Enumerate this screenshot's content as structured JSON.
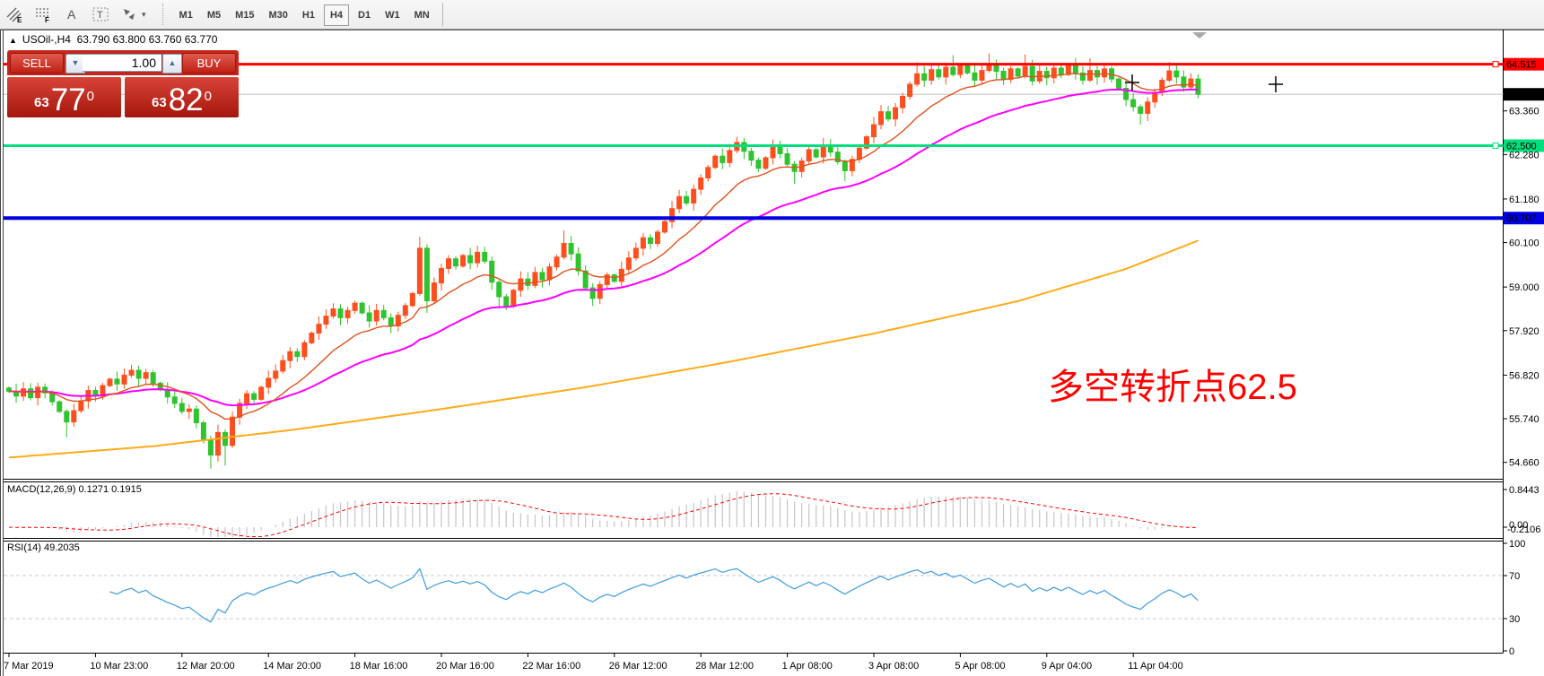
{
  "toolbar": {
    "tool_glyphs": {
      "channel": "E",
      "fibonacci": "F",
      "text": "A",
      "label": "T",
      "caret": "▾"
    },
    "timeframes": [
      {
        "label": "M1",
        "active": false
      },
      {
        "label": "M5",
        "active": false
      },
      {
        "label": "M15",
        "active": false
      },
      {
        "label": "M30",
        "active": false
      },
      {
        "label": "H1",
        "active": false
      },
      {
        "label": "H4",
        "active": true
      },
      {
        "label": "D1",
        "active": false
      },
      {
        "label": "W1",
        "active": false
      },
      {
        "label": "MN",
        "active": false
      }
    ]
  },
  "chart_header": {
    "collapse_icon": "▲",
    "symbol_period": "USOil-,H4",
    "ohlc": "63.790 63.800 63.760 63.770"
  },
  "trade_panel": {
    "sell_label": "SELL",
    "buy_label": "BUY",
    "volume": "1.00",
    "spin_up": "▲",
    "spin_down": "▼",
    "sell_price": {
      "small": "63",
      "big": "77",
      "sup": "0"
    },
    "buy_price": {
      "small": "63",
      "big": "82",
      "sup": "0"
    }
  },
  "annotation": {
    "text": "多空转折点62.5",
    "color": "#ff0000"
  },
  "indicators": {
    "macd_label": "MACD(12,26,9) 0.1271 0.1915",
    "rsi_label": "RSI(14) 49.2035"
  },
  "axis": {
    "price_ticks": [
      "63.360",
      "62.280",
      "61.180",
      "60.100",
      "59.000",
      "57.920",
      "56.820",
      "55.740",
      "54.660"
    ],
    "macd_ticks": {
      "top": "0.8443",
      "zero": "0.00",
      "bottom": "-0.2106"
    },
    "rsi_ticks": [
      "100",
      "70",
      "30",
      "0"
    ],
    "time_labels": [
      "7 Mar 2019",
      "10 Mar 23:00",
      "12 Mar 20:00",
      "14 Mar 20:00",
      "18 Mar 16:00",
      "20 Mar 16:00",
      "22 Mar 16:00",
      "26 Mar 12:00",
      "28 Mar 12:00",
      "1 Apr 08:00",
      "3 Apr 08:00",
      "5 Apr 08:00",
      "9 Apr 04:00",
      "11 Apr 04:00"
    ]
  },
  "colors": {
    "candle_up": "#fd4f1e",
    "candle_down": "#2fc32e",
    "ma_fast": "#e0521c",
    "ma_mid": "#ff00ff",
    "ma_slow": "#ffab18",
    "line_red": "#ff0000",
    "line_green": "#00df7d",
    "line_blue": "#0000e0",
    "current_line": "#c0c0c0",
    "current_badge": "#000000",
    "macd_bar": "#c9c9c9",
    "macd_signal": "#ff0000",
    "rsi_line": "#3f9ce0",
    "annotation": "#ff0000",
    "panel_red": "#c3261b"
  },
  "chart_data": {
    "type": "candlestick",
    "symbol": "USOil-",
    "period": "H4",
    "first_open": 56.5,
    "closes": [
      56.42,
      56.3,
      56.48,
      56.26,
      56.52,
      56.38,
      56.16,
      55.92,
      55.66,
      55.94,
      56.18,
      56.44,
      56.3,
      56.56,
      56.72,
      56.6,
      56.82,
      56.94,
      56.74,
      56.88,
      56.62,
      56.46,
      56.28,
      56.12,
      55.92,
      55.98,
      55.64,
      55.22,
      54.84,
      55.4,
      55.08,
      55.78,
      56.12,
      56.36,
      56.22,
      56.52,
      56.74,
      56.92,
      57.18,
      57.4,
      57.28,
      57.62,
      57.86,
      58.08,
      58.28,
      58.46,
      58.24,
      58.42,
      58.6,
      58.36,
      58.16,
      58.42,
      58.24,
      58.04,
      58.3,
      58.54,
      58.84,
      59.96,
      58.66,
      59.1,
      59.46,
      59.7,
      59.52,
      59.78,
      59.6,
      59.86,
      59.64,
      59.12,
      58.76,
      58.52,
      58.92,
      59.2,
      59.04,
      59.36,
      59.18,
      59.5,
      59.74,
      60.08,
      59.82,
      59.4,
      58.98,
      58.72,
      59.06,
      59.3,
      59.14,
      59.44,
      59.72,
      59.96,
      60.22,
      60.08,
      60.36,
      60.62,
      60.94,
      61.24,
      61.08,
      61.42,
      61.7,
      61.96,
      62.24,
      62.08,
      62.38,
      62.58,
      62.36,
      62.14,
      61.94,
      62.2,
      62.46,
      62.3,
      62.04,
      61.86,
      62.12,
      62.4,
      62.22,
      62.5,
      62.34,
      62.1,
      61.88,
      62.16,
      62.44,
      62.72,
      63.02,
      63.34,
      63.16,
      63.44,
      63.72,
      64.02,
      64.28,
      64.12,
      64.38,
      64.2,
      64.44,
      64.26,
      64.48,
      64.3,
      64.12,
      64.36,
      64.52,
      64.34,
      64.14,
      64.4,
      64.22,
      64.46,
      64.1,
      64.34,
      64.18,
      64.42,
      64.26,
      64.48,
      64.3,
      64.12,
      64.36,
      64.2,
      64.4,
      64.15,
      63.92,
      63.64,
      63.46,
      63.3,
      63.58,
      63.82,
      64.12,
      64.35,
      64.2,
      63.95,
      64.15,
      63.77
    ],
    "wick_overrides": {
      "8": [
        0.06,
        0.38
      ],
      "28": [
        0.1,
        0.34
      ],
      "30": [
        0.08,
        0.5
      ],
      "57": [
        0.28,
        0.06
      ],
      "58": [
        0.1,
        0.3
      ],
      "68": [
        0.06,
        0.3
      ],
      "77": [
        0.32,
        0.06
      ],
      "109": [
        0.08,
        0.3
      ],
      "116": [
        0.06,
        0.26
      ],
      "126": [
        0.28,
        0.06
      ],
      "131": [
        0.3,
        0.05
      ],
      "136": [
        0.26,
        0.05
      ],
      "141": [
        0.3,
        0.06
      ],
      "150": [
        0.3,
        0.05
      ],
      "157": [
        0.06,
        0.28
      ],
      "161": [
        0.22,
        0.05
      ],
      "165": [
        0.12,
        0.1
      ]
    },
    "hlines": [
      {
        "price": 64.515,
        "label": "64.515",
        "color": "#ff0000",
        "badge_bg": "#ff0000",
        "badge_fg": "#ffffff",
        "width": 3,
        "handle": true
      },
      {
        "price": 62.5,
        "label": "62.500",
        "color": "#00df7d",
        "badge_bg": "#00df7d",
        "badge_fg": "#000000",
        "width": 3,
        "handle": true
      },
      {
        "price": 60.707,
        "label": "60.707",
        "color": "#0000e0",
        "badge_bg": "#0000e0",
        "badge_fg": "#ffffff",
        "width": 4,
        "handle": false
      }
    ],
    "current_price": {
      "price": 63.77,
      "label": "63.770"
    },
    "slow_ma_anchors": [
      [
        0,
        54.78
      ],
      [
        20,
        55.06
      ],
      [
        40,
        55.48
      ],
      [
        60,
        55.98
      ],
      [
        80,
        56.52
      ],
      [
        100,
        57.15
      ],
      [
        120,
        57.85
      ],
      [
        140,
        58.65
      ],
      [
        155,
        59.45
      ],
      [
        165,
        60.15
      ]
    ],
    "ma_periods": {
      "fast": 13,
      "mid": 34
    },
    "macd": {
      "fast": 12,
      "slow": 26,
      "signal": 9
    },
    "rsi_period": 14,
    "rsi_levels": [
      70,
      30
    ],
    "cross_markers": [
      [
        1262,
        59
      ],
      [
        1422,
        61
      ]
    ]
  }
}
